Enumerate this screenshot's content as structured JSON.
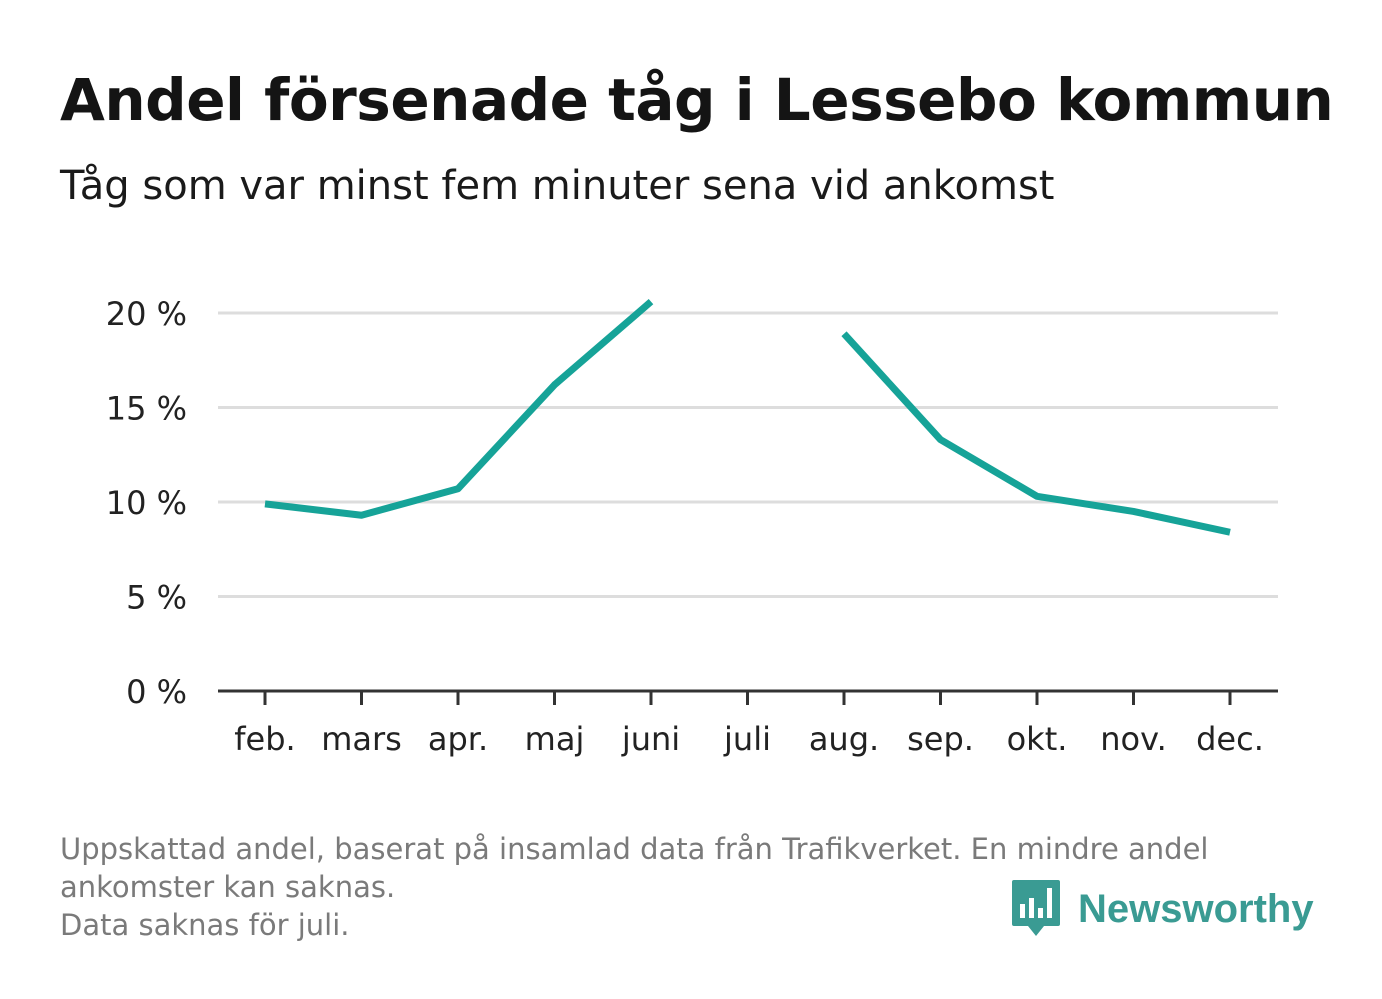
{
  "header": {
    "title": "Andel försenade tåg i Lessebo kommun",
    "subtitle": "Tåg som var minst fem minuter sena vid ankomst"
  },
  "footer": {
    "line1": "Uppskattad andel, baserat på insamlad data från Trafikverket. En mindre andel",
    "line2": "ankomster kan saknas.",
    "line3": "Data saknas för juli."
  },
  "logo": {
    "text": "Newsworthy",
    "icon": "bar-chart-speech-bubble-icon"
  },
  "colors": {
    "series": "#16a398",
    "grid": "#dddddd",
    "axis": "#333333",
    "logo": "#3a9b93"
  },
  "chart_data": {
    "type": "line",
    "title": "Andel försenade tåg i Lessebo kommun",
    "subtitle": "Tåg som var minst fem minuter sena vid ankomst",
    "categories": [
      "feb.",
      "mars",
      "apr.",
      "maj",
      "juni",
      "juli",
      "aug.",
      "sep.",
      "okt.",
      "nov.",
      "dec."
    ],
    "series": [
      {
        "values": [
          9.9,
          9.3,
          10.7,
          16.2,
          20.6,
          null,
          18.9,
          13.3,
          10.3,
          9.5,
          8.4
        ]
      }
    ],
    "yticks": [
      0,
      5,
      10,
      15,
      20
    ],
    "ytick_labels": [
      "0 %",
      "5 %",
      "10 %",
      "15 %",
      "20 %"
    ],
    "ylim": [
      0,
      20
    ],
    "grid": true,
    "legend": "none"
  }
}
